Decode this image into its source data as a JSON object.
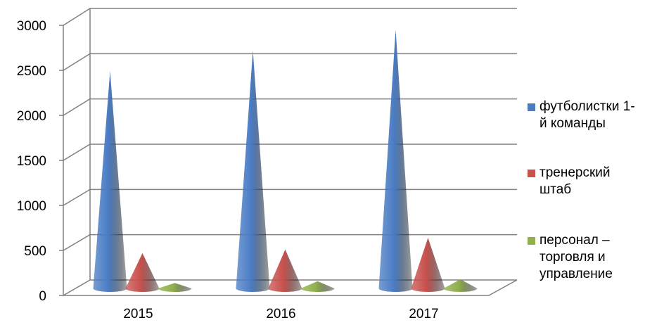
{
  "chart_data": {
    "type": "cone",
    "categories": [
      "2015",
      "2016",
      "2017"
    ],
    "series": [
      {
        "name": "футболистки 1-й команды",
        "color": "#4a7cc4",
        "values": [
          2400,
          2630,
          2860
        ]
      },
      {
        "name": "тренерский штаб",
        "color": "#c8504d",
        "values": [
          390,
          430,
          560
        ]
      },
      {
        "name": "персонал – торговля и управление",
        "color": "#8fb04a",
        "values": [
          60,
          80,
          100
        ]
      }
    ],
    "ylim": [
      0,
      3000
    ],
    "yticks": [
      0,
      500,
      1000,
      1500,
      2000,
      2500,
      3000
    ],
    "grid": true
  }
}
